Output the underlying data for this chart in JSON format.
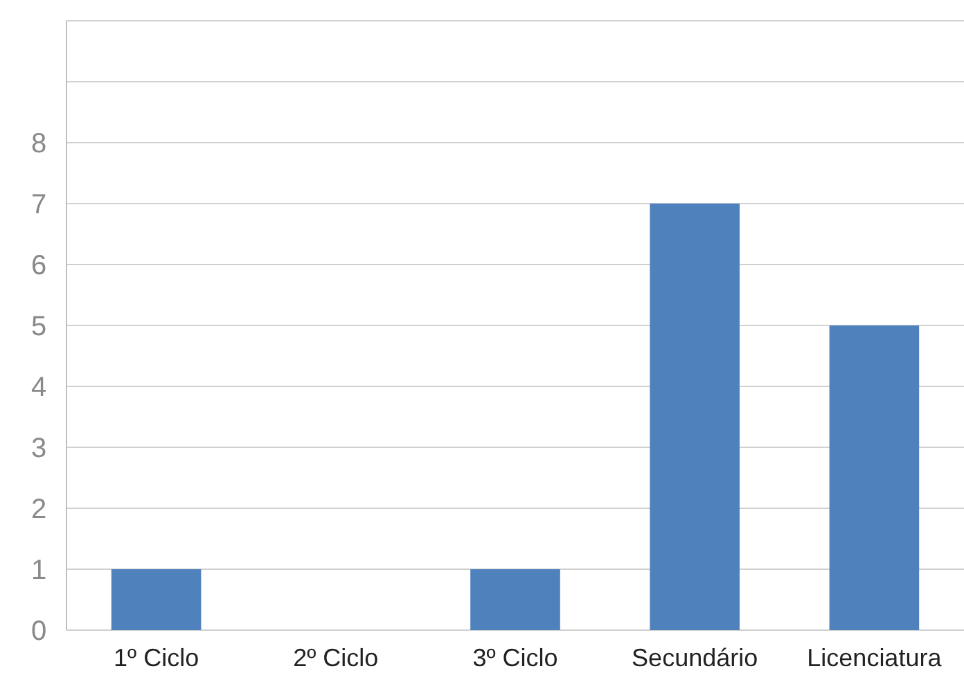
{
  "chart_data": {
    "type": "bar",
    "categories": [
      "1º Ciclo",
      "2º Ciclo",
      "3º Ciclo",
      "Secundário",
      "Licenciatura"
    ],
    "values": [
      1,
      0,
      1,
      7,
      5
    ],
    "color": "#4f81bd",
    "ylim": [
      0,
      10
    ],
    "yticks": [
      0,
      1,
      2,
      3,
      4,
      5,
      6,
      7,
      8,
      {
        "value": 9,
        "label": null
      },
      {
        "value": 10,
        "label": null
      }
    ],
    "grid": "y"
  }
}
